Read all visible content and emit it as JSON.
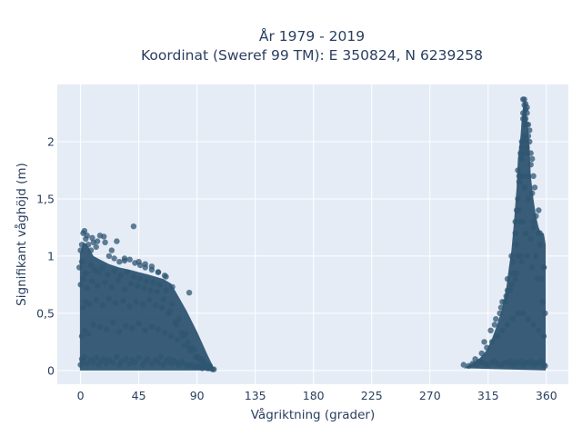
{
  "chart_data": {
    "type": "scatter",
    "title_line1": "År 1979 - 2019",
    "title_line2": "Koordinat (Sweref 99 TM): E 350824, N 6239258",
    "xlabel": "Vågriktning (grader)",
    "ylabel": "Signifikant våghöjd (m)",
    "xlim": [
      -18,
      377
    ],
    "ylim": [
      -0.12,
      2.5
    ],
    "xticks": [
      0,
      45,
      90,
      135,
      180,
      225,
      270,
      315,
      360
    ],
    "xtick_labels": [
      "0",
      "45",
      "90",
      "135",
      "180",
      "225",
      "270",
      "315",
      "360"
    ],
    "yticks": [
      0,
      0.5,
      1,
      1.5,
      2
    ],
    "ytick_labels": [
      "0",
      "0,5",
      "1",
      "1,5",
      "2"
    ],
    "grid": true,
    "marker_color": "#2f5571",
    "plot_bg": "#e5ecf6",
    "series": [
      {
        "x": [
          0,
          1,
          2,
          3,
          5,
          8,
          10,
          12,
          14,
          16,
          18,
          20,
          22,
          25,
          28,
          30,
          32,
          35,
          38,
          40,
          42,
          45,
          48,
          50,
          52,
          55,
          58,
          60,
          62,
          64,
          66,
          68,
          70,
          72,
          74,
          76,
          78,
          80,
          82,
          84,
          86,
          88,
          90,
          92,
          94,
          96,
          98,
          100,
          102,
          103,
          1,
          3,
          6,
          10,
          15,
          20,
          25,
          30,
          35,
          40,
          45,
          50,
          55,
          60,
          65,
          70,
          75,
          80,
          85,
          90,
          95,
          100,
          2,
          4,
          7,
          12,
          17,
          22,
          27,
          33,
          38,
          43,
          48,
          53,
          58,
          63,
          68,
          73,
          78,
          83,
          88,
          93,
          98,
          0,
          2,
          5,
          9,
          13,
          19,
          24,
          29,
          34,
          39,
          44,
          49,
          54,
          59,
          64,
          69,
          74,
          79,
          84,
          89,
          94,
          99,
          -1,
          1,
          4,
          8,
          11,
          14,
          17,
          21,
          26,
          31,
          36,
          41,
          46,
          51,
          56,
          61,
          66,
          71,
          76,
          81,
          86,
          91,
          96,
          0,
          1,
          2,
          3,
          4,
          6,
          8,
          10,
          12,
          15,
          18,
          22,
          26,
          30,
          34,
          38,
          42,
          46,
          50,
          55,
          60,
          65,
          41,
          13,
          19,
          28,
          60,
          71,
          84,
          5,
          9,
          24,
          34,
          45,
          50,
          55,
          66,
          296,
          300,
          303,
          306,
          308,
          310,
          312,
          315,
          318,
          320,
          322,
          325,
          328,
          330,
          332,
          334,
          336,
          338,
          340,
          342,
          344,
          346,
          348,
          350,
          352,
          354,
          356,
          358,
          359,
          305,
          310,
          314,
          318,
          322,
          326,
          330,
          334,
          338,
          342,
          346,
          350,
          354,
          358,
          312,
          317,
          321,
          325,
          329,
          333,
          337,
          341,
          345,
          349,
          353,
          357,
          320,
          324,
          328,
          332,
          336,
          340,
          344,
          348,
          352,
          356,
          326,
          330,
          334,
          338,
          342,
          346,
          350,
          354,
          358,
          330,
          334,
          337,
          340,
          343,
          346,
          349,
          352,
          355,
          333,
          336,
          339,
          342,
          345,
          348,
          351,
          354,
          336,
          338,
          340,
          342,
          344,
          346,
          348,
          350,
          337,
          339,
          341,
          343,
          345,
          347,
          349,
          339,
          341,
          343,
          345,
          347,
          340,
          342,
          344,
          346,
          341,
          342,
          343,
          344,
          342,
          343,
          344,
          345,
          338,
          345,
          350,
          355,
          358,
          359
        ],
        "y": [
          0.05,
          0.1,
          0.08,
          0.12,
          0.06,
          0.09,
          0.07,
          0.11,
          0.05,
          0.08,
          0.1,
          0.06,
          0.09,
          0.07,
          0.12,
          0.05,
          0.08,
          0.1,
          0.06,
          0.09,
          0.07,
          0.11,
          0.05,
          0.08,
          0.1,
          0.06,
          0.09,
          0.07,
          0.12,
          0.05,
          0.08,
          0.1,
          0.06,
          0.09,
          0.07,
          0.05,
          0.08,
          0.06,
          0.05,
          0.04,
          0.05,
          0.03,
          0.04,
          0.03,
          0.02,
          0.03,
          0.02,
          0.02,
          0.01,
          0.01,
          0.3,
          0.35,
          0.32,
          0.4,
          0.38,
          0.36,
          0.42,
          0.34,
          0.39,
          0.37,
          0.41,
          0.35,
          0.38,
          0.36,
          0.33,
          0.3,
          0.27,
          0.22,
          0.17,
          0.12,
          0.08,
          0.04,
          0.55,
          0.6,
          0.58,
          0.62,
          0.57,
          0.63,
          0.59,
          0.61,
          0.56,
          0.6,
          0.58,
          0.62,
          0.57,
          0.55,
          0.5,
          0.42,
          0.33,
          0.25,
          0.18,
          0.1,
          0.05,
          0.75,
          0.8,
          0.72,
          0.78,
          0.74,
          0.77,
          0.73,
          0.79,
          0.71,
          0.76,
          0.74,
          0.72,
          0.7,
          0.69,
          0.62,
          0.52,
          0.4,
          0.3,
          0.2,
          0.12,
          0.06,
          0.02,
          0.9,
          0.95,
          0.85,
          0.92,
          0.88,
          0.86,
          0.9,
          0.84,
          0.87,
          0.83,
          0.86,
          0.82,
          0.8,
          0.78,
          0.77,
          0.75,
          0.7,
          0.58,
          0.45,
          0.32,
          0.2,
          0.1,
          0.04,
          1.05,
          1.1,
          1.2,
          1.22,
          1.15,
          1.1,
          1.05,
          1.12,
          1.08,
          1.18,
          1.17,
          1.0,
          0.98,
          0.95,
          0.96,
          0.97,
          0.94,
          0.92,
          0.9,
          0.88,
          0.86,
          0.83,
          1.26,
          1.13,
          1.12,
          1.13,
          0.86,
          0.73,
          0.68,
          1.18,
          1.16,
          1.05,
          0.98,
          0.95,
          0.93,
          0.91,
          0.82,
          0.05,
          0.04,
          0.06,
          0.05,
          0.08,
          0.07,
          0.06,
          0.05,
          0.07,
          0.08,
          0.06,
          0.05,
          0.07,
          0.06,
          0.08,
          0.05,
          0.07,
          0.06,
          0.08,
          0.05,
          0.07,
          0.06,
          0.08,
          0.05,
          0.07,
          0.06,
          0.08,
          0.05,
          0.04,
          0.1,
          0.15,
          0.2,
          0.25,
          0.3,
          0.35,
          0.4,
          0.45,
          0.5,
          0.5,
          0.45,
          0.4,
          0.35,
          0.3,
          0.25,
          0.35,
          0.45,
          0.55,
          0.65,
          0.75,
          0.85,
          0.95,
          1.0,
          0.9,
          0.8,
          0.6,
          0.4,
          0.5,
          0.6,
          0.7,
          0.8,
          1.0,
          1.2,
          1.15,
          1.0,
          0.8,
          0.6,
          0.7,
          0.85,
          1.0,
          1.3,
          1.5,
          1.3,
          1.2,
          0.9,
          0.8,
          0.95,
          1.1,
          1.3,
          1.6,
          1.7,
          1.55,
          1.35,
          1.1,
          1.0,
          1.2,
          1.4,
          1.7,
          1.9,
          1.8,
          1.6,
          1.4,
          1.3,
          1.5,
          1.7,
          1.9,
          2.0,
          2.05,
          1.9,
          1.7,
          1.4,
          1.65,
          1.85,
          2.05,
          2.15,
          2.0,
          1.85,
          1.7,
          1.95,
          2.15,
          2.25,
          2.1,
          1.9,
          2.2,
          2.28,
          2.15,
          2.0,
          2.25,
          2.32,
          2.2,
          2.37,
          2.37,
          2.33,
          2.3,
          1.75,
          1.95,
          1.25,
          1.2,
          0.9,
          0.5
        ]
      }
    ]
  }
}
